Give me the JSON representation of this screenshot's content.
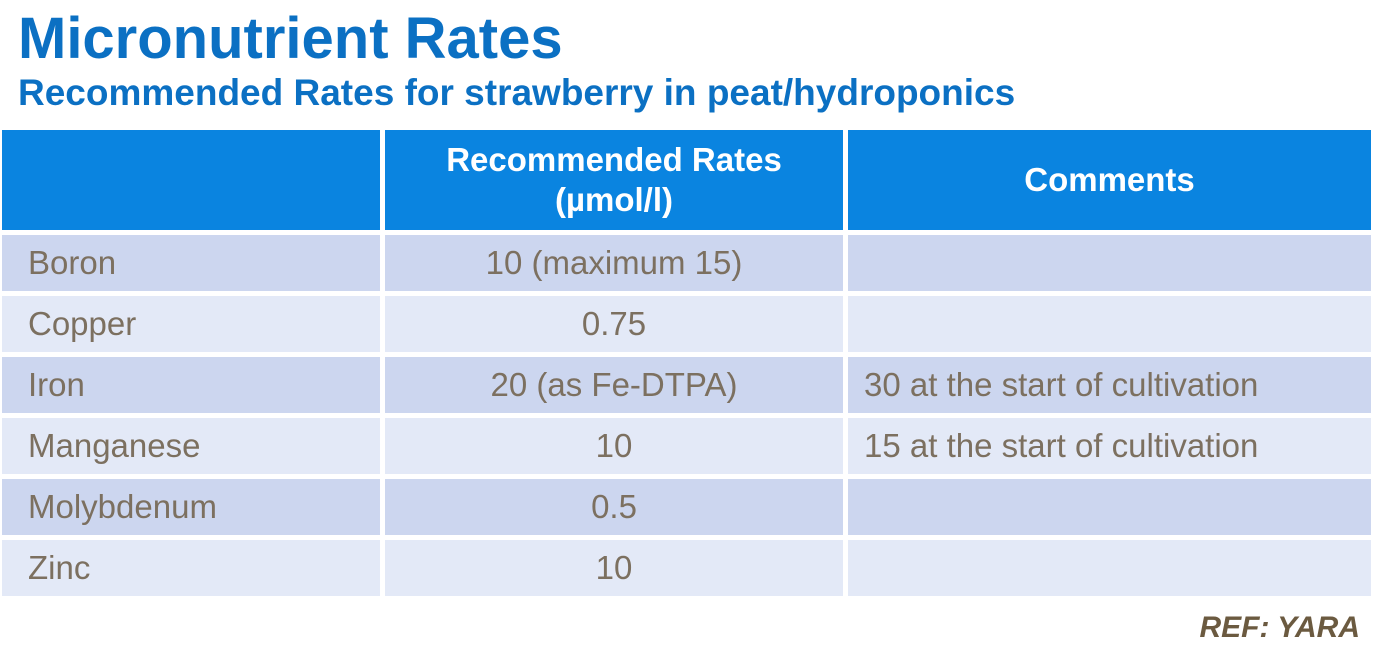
{
  "slide": {
    "title": "Micronutrient Rates",
    "subtitle": "Recommended Rates for strawberry in peat/hydroponics",
    "reference": "REF: YARA"
  },
  "table": {
    "header": {
      "nutrient": "",
      "rates": "Recommended Rates\n(µmol/l)",
      "comments": "Comments"
    },
    "rows": [
      {
        "nutrient": "Boron",
        "rate": "10 (maximum 15)",
        "comment": ""
      },
      {
        "nutrient": "Copper",
        "rate": "0.75",
        "comment": ""
      },
      {
        "nutrient": "Iron",
        "rate": "20 (as Fe-DTPA)",
        "comment": "30 at the start of cultivation"
      },
      {
        "nutrient": "Manganese",
        "rate": "10",
        "comment": "15 at the start of cultivation"
      },
      {
        "nutrient": "Molybdenum",
        "rate": "0.5",
        "comment": ""
      },
      {
        "nutrient": "Zinc",
        "rate": "10",
        "comment": ""
      }
    ]
  },
  "colors": {
    "background": "#ffffff",
    "title_blue": "#0b70c3",
    "header_blue": "#0a84e0",
    "header_text": "#ffffff",
    "row_stripe_dark": "#ccd6ef",
    "row_stripe_light": "#e3e9f7",
    "body_text": "#7c7060",
    "reference_text": "#6b5a40"
  }
}
